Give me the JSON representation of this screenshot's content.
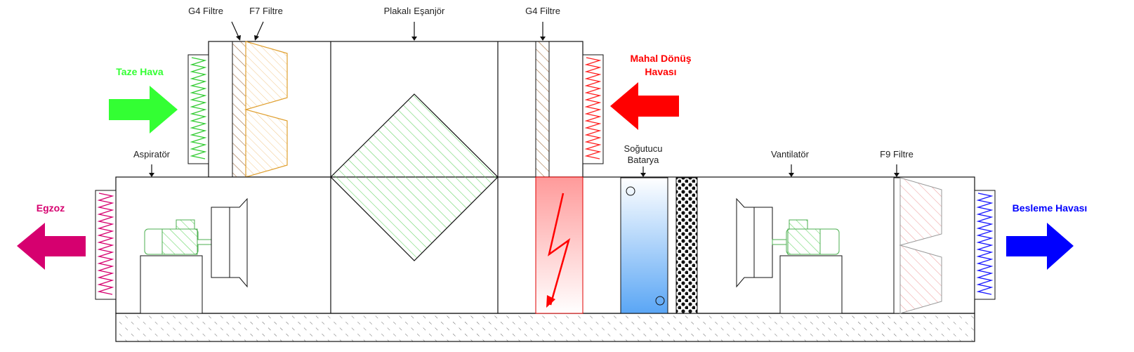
{
  "labels": {
    "g4_filter_top_left": "G4 Filtre",
    "f7_filter": "F7 Filtre",
    "plate_exchanger": "Plakalı Eşanjör",
    "g4_filter_top_right": "G4 Filtre",
    "aspirator": "Aspiratör",
    "cooling_coil_line1": "Soğutucu",
    "cooling_coil_line2": "Batarya",
    "fan": "Vantilatör",
    "f9_filter": "F9 Filtre"
  },
  "airflows": {
    "fresh_air": {
      "label": "Taze Hava",
      "color": "#33ff33"
    },
    "return_air": {
      "label_line1": "Mahal Dönüş",
      "label_line2": "Havası",
      "color": "#ff0000"
    },
    "exhaust": {
      "label": "Egzoz",
      "color": "#d6006f"
    },
    "supply_air": {
      "label": "Besleme Havası",
      "color": "#0000ff"
    }
  }
}
